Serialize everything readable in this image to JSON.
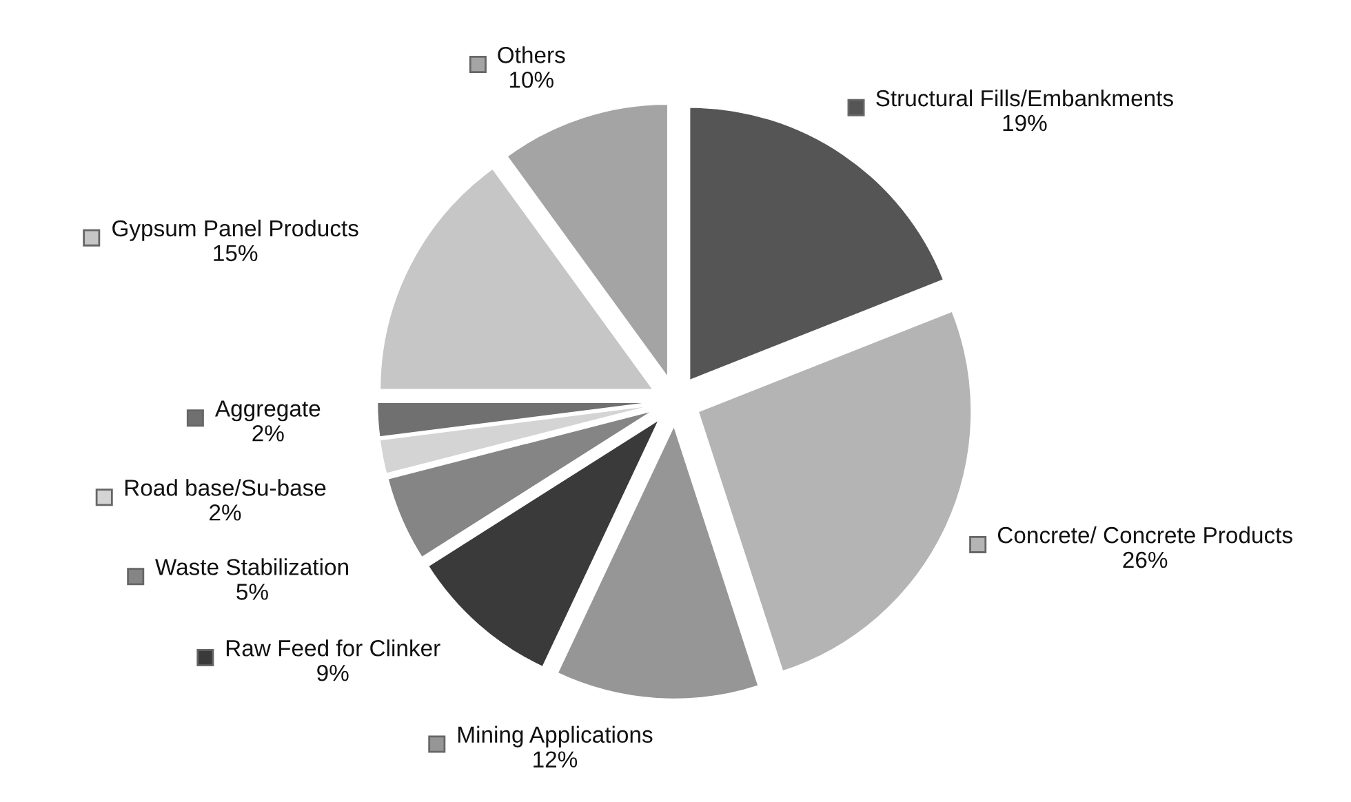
{
  "chart_data": {
    "type": "pie",
    "categories": [
      "Structural Fills/Embankments",
      "Concrete/ Concrete Products",
      "Mining Applications",
      "Raw Feed for Clinker",
      "Waste Stabilization",
      "Road base/Su-base",
      "Aggregate",
      "Gypsum Panel Products",
      "Others"
    ],
    "legend": "right",
    "values": [
      19,
      26,
      12,
      9,
      5,
      2,
      2,
      15,
      10
    ],
    "value_labels": [
      "19%",
      "26%",
      "12%",
      "9%",
      "5%",
      "2%",
      "2%",
      "15%",
      "10%"
    ],
    "colors": [
      "#555555",
      "#b4b4b4",
      "#969696",
      "#3a3a3a",
      "#858585",
      "#d4d4d4",
      "#707070",
      "#c6c6c6",
      "#a4a4a4"
    ]
  }
}
